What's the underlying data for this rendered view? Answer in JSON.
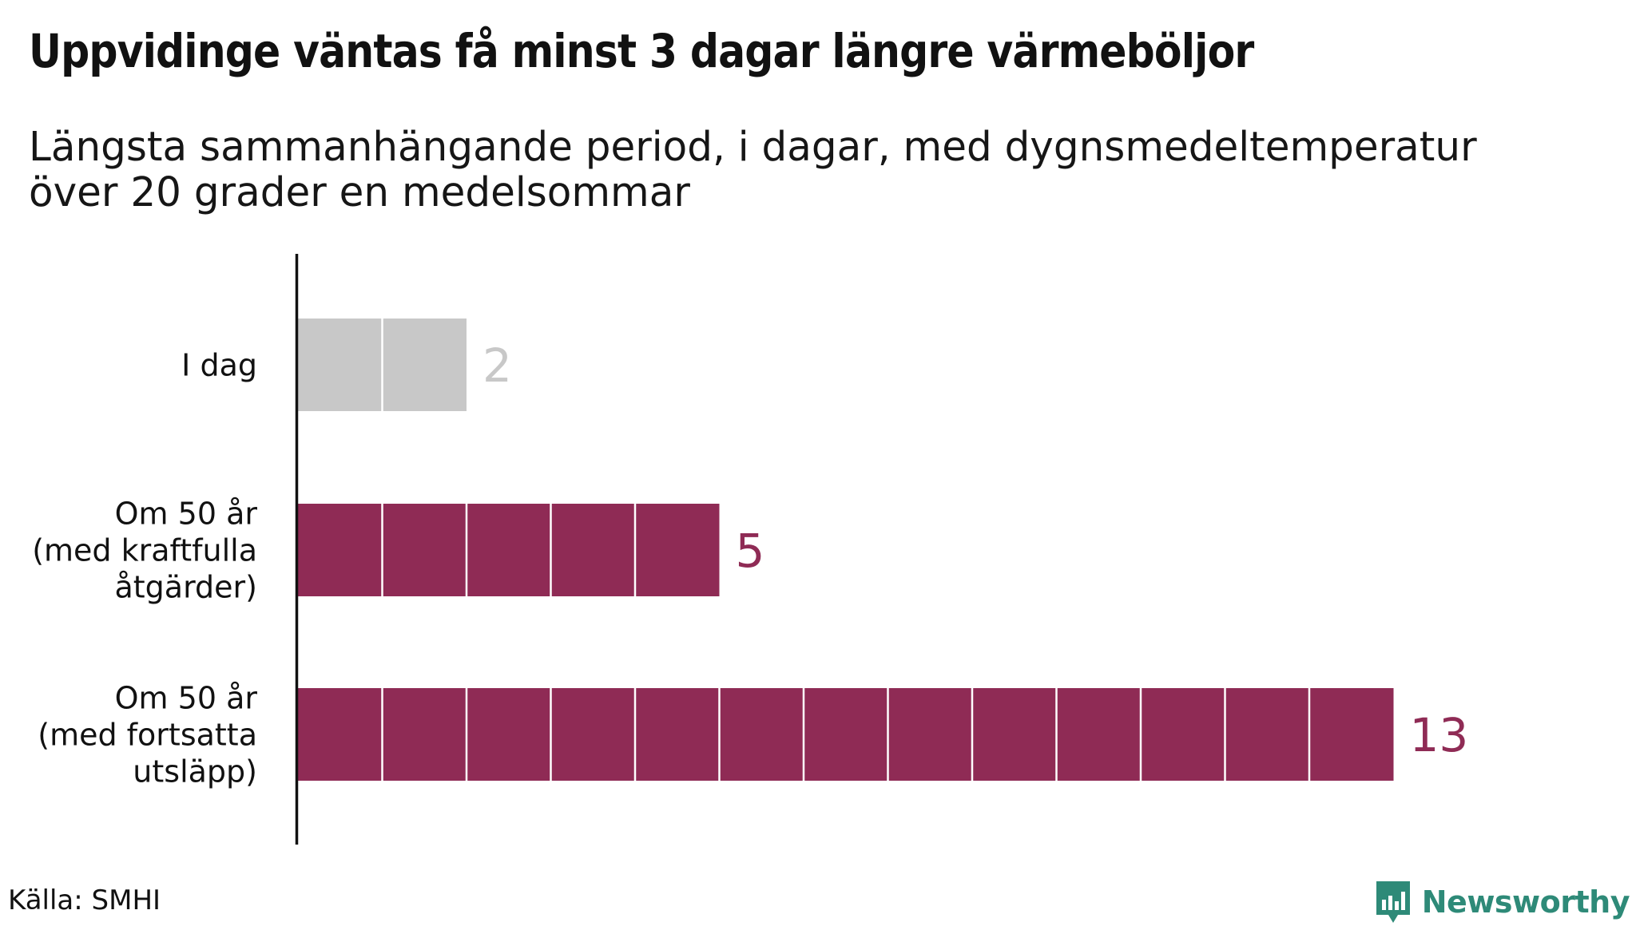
{
  "title": "Uppvidinge väntas få minst 3 dagar längre värmeböljor",
  "subtitle": "Längsta sammanhängande period, i dagar, med dygnsmedeltemperatur över 20 grader en medelsommar",
  "source": "Källa: SMHI",
  "brand": {
    "name": "Newsworthy",
    "icon": "newsworthy-logo-icon",
    "color": "#2e8a78"
  },
  "colors": {
    "baseline": "#c8c8c8",
    "highlight": "#8f2b55",
    "axis": "#111111",
    "label": "#111111"
  },
  "chart_data": {
    "type": "bar",
    "orientation": "horizontal",
    "unit": "dagar",
    "categories": [
      [
        "I dag"
      ],
      [
        "Om 50 år",
        "(med kraftfulla",
        "åtgärder)"
      ],
      [
        "Om 50 år",
        "(med fortsatta",
        "utsläpp)"
      ]
    ],
    "values": [
      2,
      5,
      13
    ],
    "value_labels": [
      "2",
      "5",
      "13"
    ],
    "bar_colors": [
      "#c8c8c8",
      "#8f2b55",
      "#8f2b55"
    ],
    "segmented_per_unit": true,
    "xlim": [
      0,
      13
    ],
    "grid": false,
    "legend": "none"
  }
}
